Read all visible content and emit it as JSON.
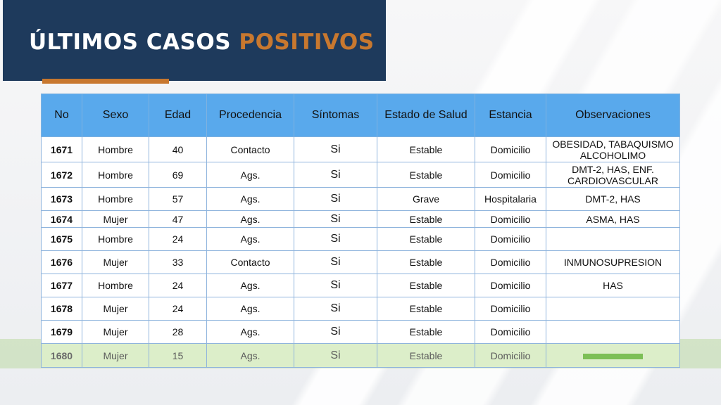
{
  "header": {
    "title_part1": "ÚLTIMOS CASOS",
    "title_part2": "POSITIVOS"
  },
  "colors": {
    "header_bg": "#1e3a5c",
    "accent": "#c8782f",
    "table_header_bg": "#59a9ec",
    "highlight": "#dceec9",
    "green_bar": "#7cbf56"
  },
  "table": {
    "columns": [
      "No",
      "Sexo",
      "Edad",
      "Procedencia",
      "Síntomas",
      "Estado de Salud",
      "Estancia",
      "Observaciones"
    ],
    "rows": [
      {
        "no": "1671",
        "sexo": "Hombre",
        "edad": "40",
        "procedencia": "Contacto",
        "sintomas": "Si",
        "estado": "Estable",
        "estancia": "Domicilio",
        "obs": "OBESIDAD, TABAQUISMO ALCOHOLIMO"
      },
      {
        "no": "1672",
        "sexo": "Hombre",
        "edad": "69",
        "procedencia": "Ags.",
        "sintomas": "Si",
        "estado": "Estable",
        "estancia": "Domicilio",
        "obs": "DMT-2, HAS, ENF. CARDIOVASCULAR"
      },
      {
        "no": "1673",
        "sexo": "Hombre",
        "edad": "57",
        "procedencia": "Ags.",
        "sintomas": "Si",
        "estado": "Grave",
        "estancia": "Hospitalaria",
        "obs": "DMT-2, HAS"
      },
      {
        "no": "1674",
        "sexo": "Mujer",
        "edad": "47",
        "procedencia": "Ags.",
        "sintomas": "Si",
        "estado": "Estable",
        "estancia": "Domicilio",
        "obs": "ASMA, HAS"
      },
      {
        "no": "1675",
        "sexo": "Hombre",
        "edad": "24",
        "procedencia": "Ags.",
        "sintomas": "Si",
        "estado": "Estable",
        "estancia": "Domicilio",
        "obs": ""
      },
      {
        "no": "1676",
        "sexo": "Mujer",
        "edad": "33",
        "procedencia": "Contacto",
        "sintomas": "Si",
        "estado": "Estable",
        "estancia": "Domicilio",
        "obs": "INMUNOSUPRESION"
      },
      {
        "no": "1677",
        "sexo": "Hombre",
        "edad": "24",
        "procedencia": "Ags.",
        "sintomas": "Si",
        "estado": "Estable",
        "estancia": "Domicilio",
        "obs": "HAS"
      },
      {
        "no": "1678",
        "sexo": "Mujer",
        "edad": "24",
        "procedencia": "Ags.",
        "sintomas": "Si",
        "estado": "Estable",
        "estancia": "Domicilio",
        "obs": ""
      },
      {
        "no": "1679",
        "sexo": "Mujer",
        "edad": "28",
        "procedencia": "Ags.",
        "sintomas": "Si",
        "estado": "Estable",
        "estancia": "Domicilio",
        "obs": ""
      },
      {
        "no": "1680",
        "sexo": "Mujer",
        "edad": "15",
        "procedencia": "Ags.",
        "sintomas": "Si",
        "estado": "Estable",
        "estancia": "Domicilio",
        "obs": ""
      }
    ]
  }
}
